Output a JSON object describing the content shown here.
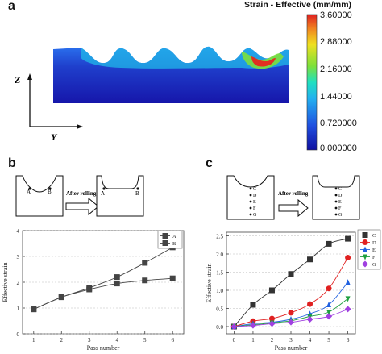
{
  "panels": {
    "a": {
      "label": "a",
      "colorbar_title": "Strain - Effective (mm/mm)",
      "colorbar_ticks": [
        "3.60000",
        "2.88000",
        "2.16000",
        "1.44000",
        "0.720000",
        "0.000000"
      ],
      "axis_z": "Z",
      "axis_y": "Y",
      "colors": {
        "low": "#1a1ab8",
        "mid_low": "#2a7ff0",
        "mid": "#20d0e0",
        "mid_high": "#7de03a",
        "high": "#e03020"
      }
    },
    "b": {
      "label": "b",
      "after_rolling": "After rolling",
      "points_before": [
        "A",
        "B"
      ],
      "points_after": [
        "A",
        "B"
      ]
    },
    "c": {
      "label": "c",
      "after_rolling": "After rolling",
      "points_before": [
        "C",
        "D",
        "E",
        "F",
        "G"
      ],
      "points_after": [
        "C",
        "D",
        "E",
        "F",
        "G"
      ]
    }
  },
  "chart_data": [
    {
      "id": "b",
      "type": "line",
      "x": [
        1,
        2,
        3,
        4,
        5,
        6
      ],
      "xlabel": "Pass number",
      "ylabel": "Effective strain",
      "xlim": [
        0.6,
        6.4
      ],
      "ylim": [
        0,
        4
      ],
      "xticks": [
        "1",
        "2",
        "3",
        "4",
        "5",
        "6"
      ],
      "yticks": [
        "0",
        "1",
        "2",
        "3",
        "4"
      ],
      "grid": true,
      "legend_position": "top-right",
      "series": [
        {
          "name": "A",
          "marker": "square",
          "values": [
            0.95,
            1.42,
            1.78,
            2.2,
            2.75,
            3.35
          ]
        },
        {
          "name": "B",
          "marker": "square",
          "values": [
            0.95,
            1.42,
            1.72,
            1.95,
            2.07,
            2.15
          ]
        }
      ]
    },
    {
      "id": "c",
      "type": "line",
      "x": [
        0,
        1,
        2,
        3,
        4,
        5,
        6
      ],
      "xlabel": "Pass number",
      "ylabel": "Effective strain",
      "xlim": [
        -0.4,
        6.4
      ],
      "ylim": [
        -0.2,
        2.6
      ],
      "xticks": [
        "0",
        "1",
        "2",
        "3",
        "4",
        "5",
        "6"
      ],
      "yticks": [
        "0.0",
        "0.5",
        "1.0",
        "1.5",
        "2.0",
        "2.5"
      ],
      "grid": true,
      "legend_position": "right",
      "series": [
        {
          "name": "C",
          "marker": "square",
          "color": "#333333",
          "values": [
            0.0,
            0.6,
            1.0,
            1.45,
            1.85,
            2.28,
            2.42
          ]
        },
        {
          "name": "D",
          "marker": "circle",
          "color": "#e02020",
          "values": [
            0.0,
            0.15,
            0.22,
            0.38,
            0.62,
            1.05,
            1.9
          ]
        },
        {
          "name": "E",
          "marker": "triangle",
          "color": "#2060e0",
          "values": [
            0.0,
            0.08,
            0.12,
            0.2,
            0.35,
            0.6,
            1.22
          ]
        },
        {
          "name": "F",
          "marker": "triangle-down",
          "color": "#20a040",
          "values": [
            0.0,
            0.05,
            0.1,
            0.16,
            0.28,
            0.4,
            0.77
          ]
        },
        {
          "name": "G",
          "marker": "diamond",
          "color": "#a040e0",
          "values": [
            0.0,
            0.03,
            0.08,
            0.12,
            0.2,
            0.28,
            0.48
          ]
        }
      ]
    }
  ]
}
